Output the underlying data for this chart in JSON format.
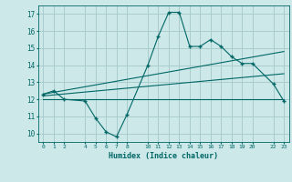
{
  "xlabel": "Humidex (Indice chaleur)",
  "bg_color": "#cce8e8",
  "grid_color": "#aacccc",
  "line_color": "#006666",
  "ylim": [
    9.5,
    17.5
  ],
  "xlim": [
    -0.5,
    23.5
  ],
  "yticks": [
    10,
    11,
    12,
    13,
    14,
    15,
    16,
    17
  ],
  "xticks": [
    0,
    1,
    2,
    4,
    5,
    6,
    7,
    8,
    10,
    11,
    12,
    13,
    14,
    15,
    16,
    17,
    18,
    19,
    20,
    22,
    23
  ],
  "zigzag_x": [
    0,
    1,
    2,
    4,
    5,
    6,
    7,
    8,
    10,
    11,
    12,
    13,
    14,
    15,
    16,
    17,
    18,
    19,
    20,
    22,
    23
  ],
  "zigzag_y": [
    12.3,
    12.5,
    12.0,
    11.9,
    10.9,
    10.1,
    9.8,
    11.1,
    14.0,
    15.7,
    17.1,
    17.1,
    15.1,
    15.1,
    15.5,
    15.1,
    14.5,
    14.1,
    14.1,
    12.9,
    11.9
  ],
  "trend1_x": [
    0,
    23
  ],
  "trend1_y": [
    12.3,
    14.8
  ],
  "trend2_x": [
    0,
    23
  ],
  "trend2_y": [
    12.2,
    13.5
  ],
  "hline_y": 12.0,
  "hline_x": [
    0,
    23
  ]
}
